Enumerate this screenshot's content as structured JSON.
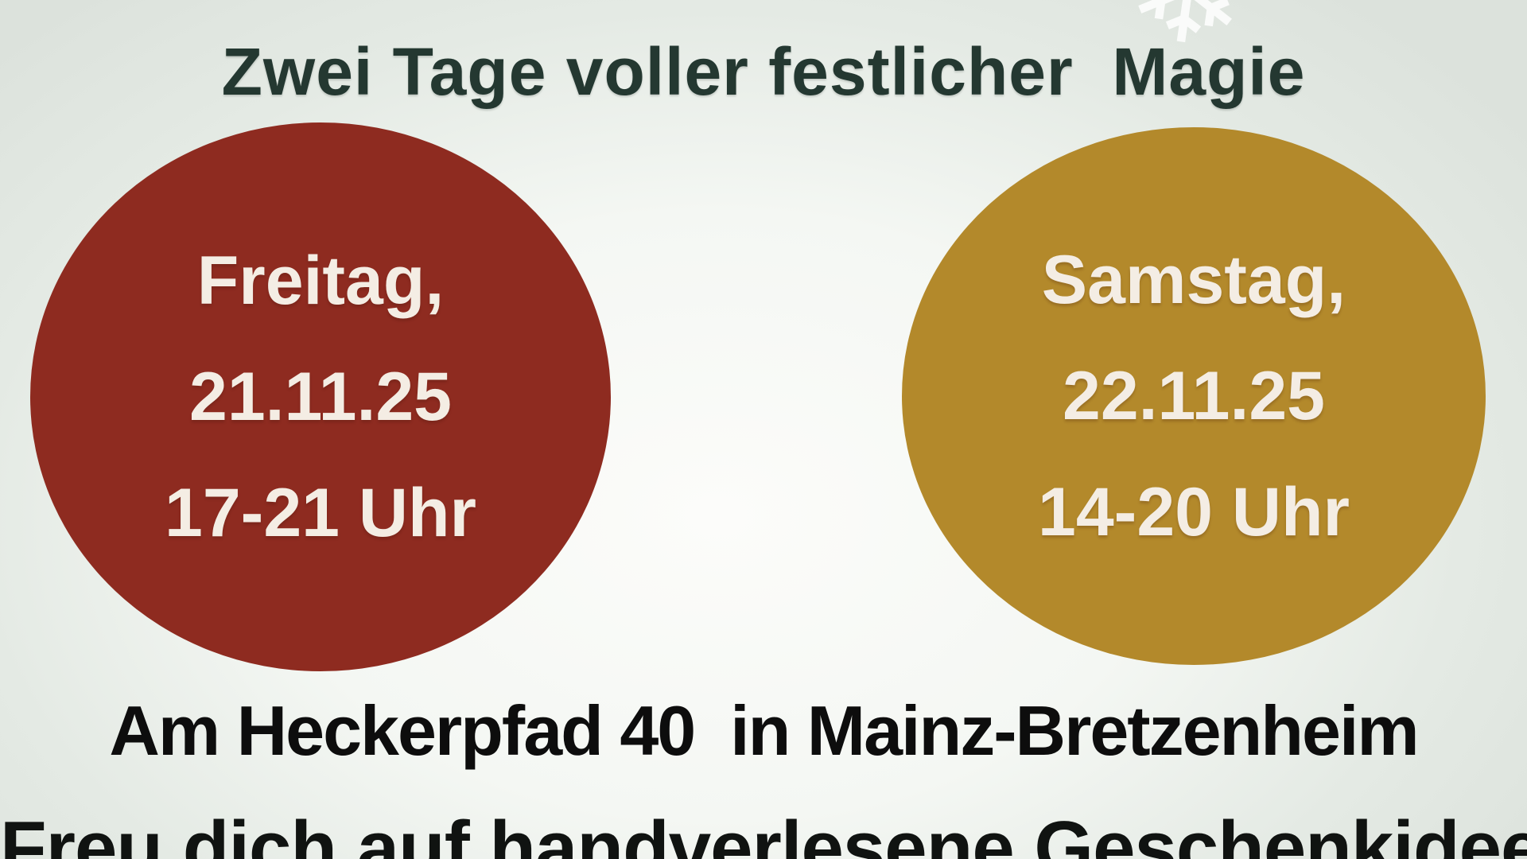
{
  "poster": {
    "title": "Zwei Tage voller festlicher  Magie",
    "events": [
      {
        "day": "Freitag,",
        "date": "21.11.25",
        "time": "17-21 Uhr",
        "circle_color": "#8E2B20"
      },
      {
        "day": "Samstag,",
        "date": "22.11.25",
        "time": "14-20 Uhr",
        "circle_color": "#B3892B"
      }
    ],
    "address": "Am Heckerpfad 40  in Mainz-Bretzenheim",
    "tagline": "Freu dich auf handverlesene Geschenkideen",
    "icons": {
      "snowflake": "❄"
    },
    "colors": {
      "background_center": "#FCFCFA",
      "background_edge": "#DCE2DC",
      "title_text": "#243831",
      "circle_text": "#F4EDE4",
      "address_text": "#0D0D0D",
      "snowflake": "#FFFFFF"
    }
  }
}
